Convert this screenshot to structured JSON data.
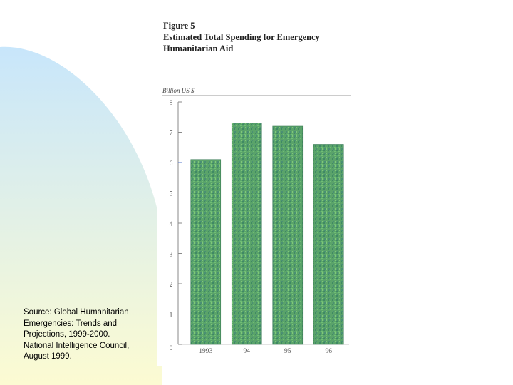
{
  "source_note": [
    "Source: Global Humanitarian",
    "Emergencies: Trends and",
    "Projections, 1999-2000.",
    "National Intelligence Council,",
    "August 1999."
  ],
  "figure": {
    "label": "Figure 5",
    "title_line1": "Estimated Total Spending for Emergency",
    "title_line2": "Humanitarian Aid"
  },
  "chart_data": {
    "type": "bar",
    "ylabel": "Billion US $",
    "categories": [
      "1993",
      "94",
      "95",
      "96"
    ],
    "values": [
      6.1,
      7.3,
      7.2,
      6.6
    ],
    "yticks": [
      0,
      1,
      2,
      3,
      4,
      5,
      6,
      7,
      8
    ],
    "ylim": [
      0,
      8
    ],
    "grid": false,
    "bar_color": "#5aa36a"
  },
  "colors": {
    "background_gradient_top": "#c8e6fb",
    "background_gradient_bottom": "#fcfbd2",
    "axis": "#8a8a8a"
  }
}
